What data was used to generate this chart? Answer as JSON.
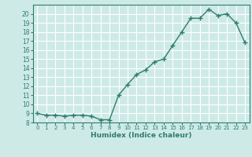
{
  "x": [
    0,
    1,
    2,
    3,
    4,
    5,
    6,
    7,
    8,
    9,
    10,
    11,
    12,
    13,
    14,
    15,
    16,
    17,
    18,
    19,
    20,
    21,
    22,
    23
  ],
  "y": [
    9,
    8.8,
    8.8,
    8.7,
    8.8,
    8.8,
    8.7,
    8.3,
    8.3,
    11.0,
    12.2,
    13.3,
    13.8,
    14.7,
    15.0,
    16.5,
    18.0,
    19.5,
    19.5,
    20.5,
    19.8,
    20.0,
    19.0,
    16.8
  ],
  "title": "",
  "xlabel": "Humidex (Indice chaleur)",
  "ylabel": "",
  "xlim": [
    -0.5,
    23.5
  ],
  "ylim": [
    8,
    21
  ],
  "yticks": [
    8,
    9,
    10,
    11,
    12,
    13,
    14,
    15,
    16,
    17,
    18,
    19,
    20
  ],
  "xticks": [
    0,
    1,
    2,
    3,
    4,
    5,
    6,
    7,
    8,
    9,
    10,
    11,
    12,
    13,
    14,
    15,
    16,
    17,
    18,
    19,
    20,
    21,
    22,
    23
  ],
  "line_color": "#2e7d6e",
  "bg_color": "#ceeae7",
  "grid_color": "#ffffff",
  "marker": "+"
}
